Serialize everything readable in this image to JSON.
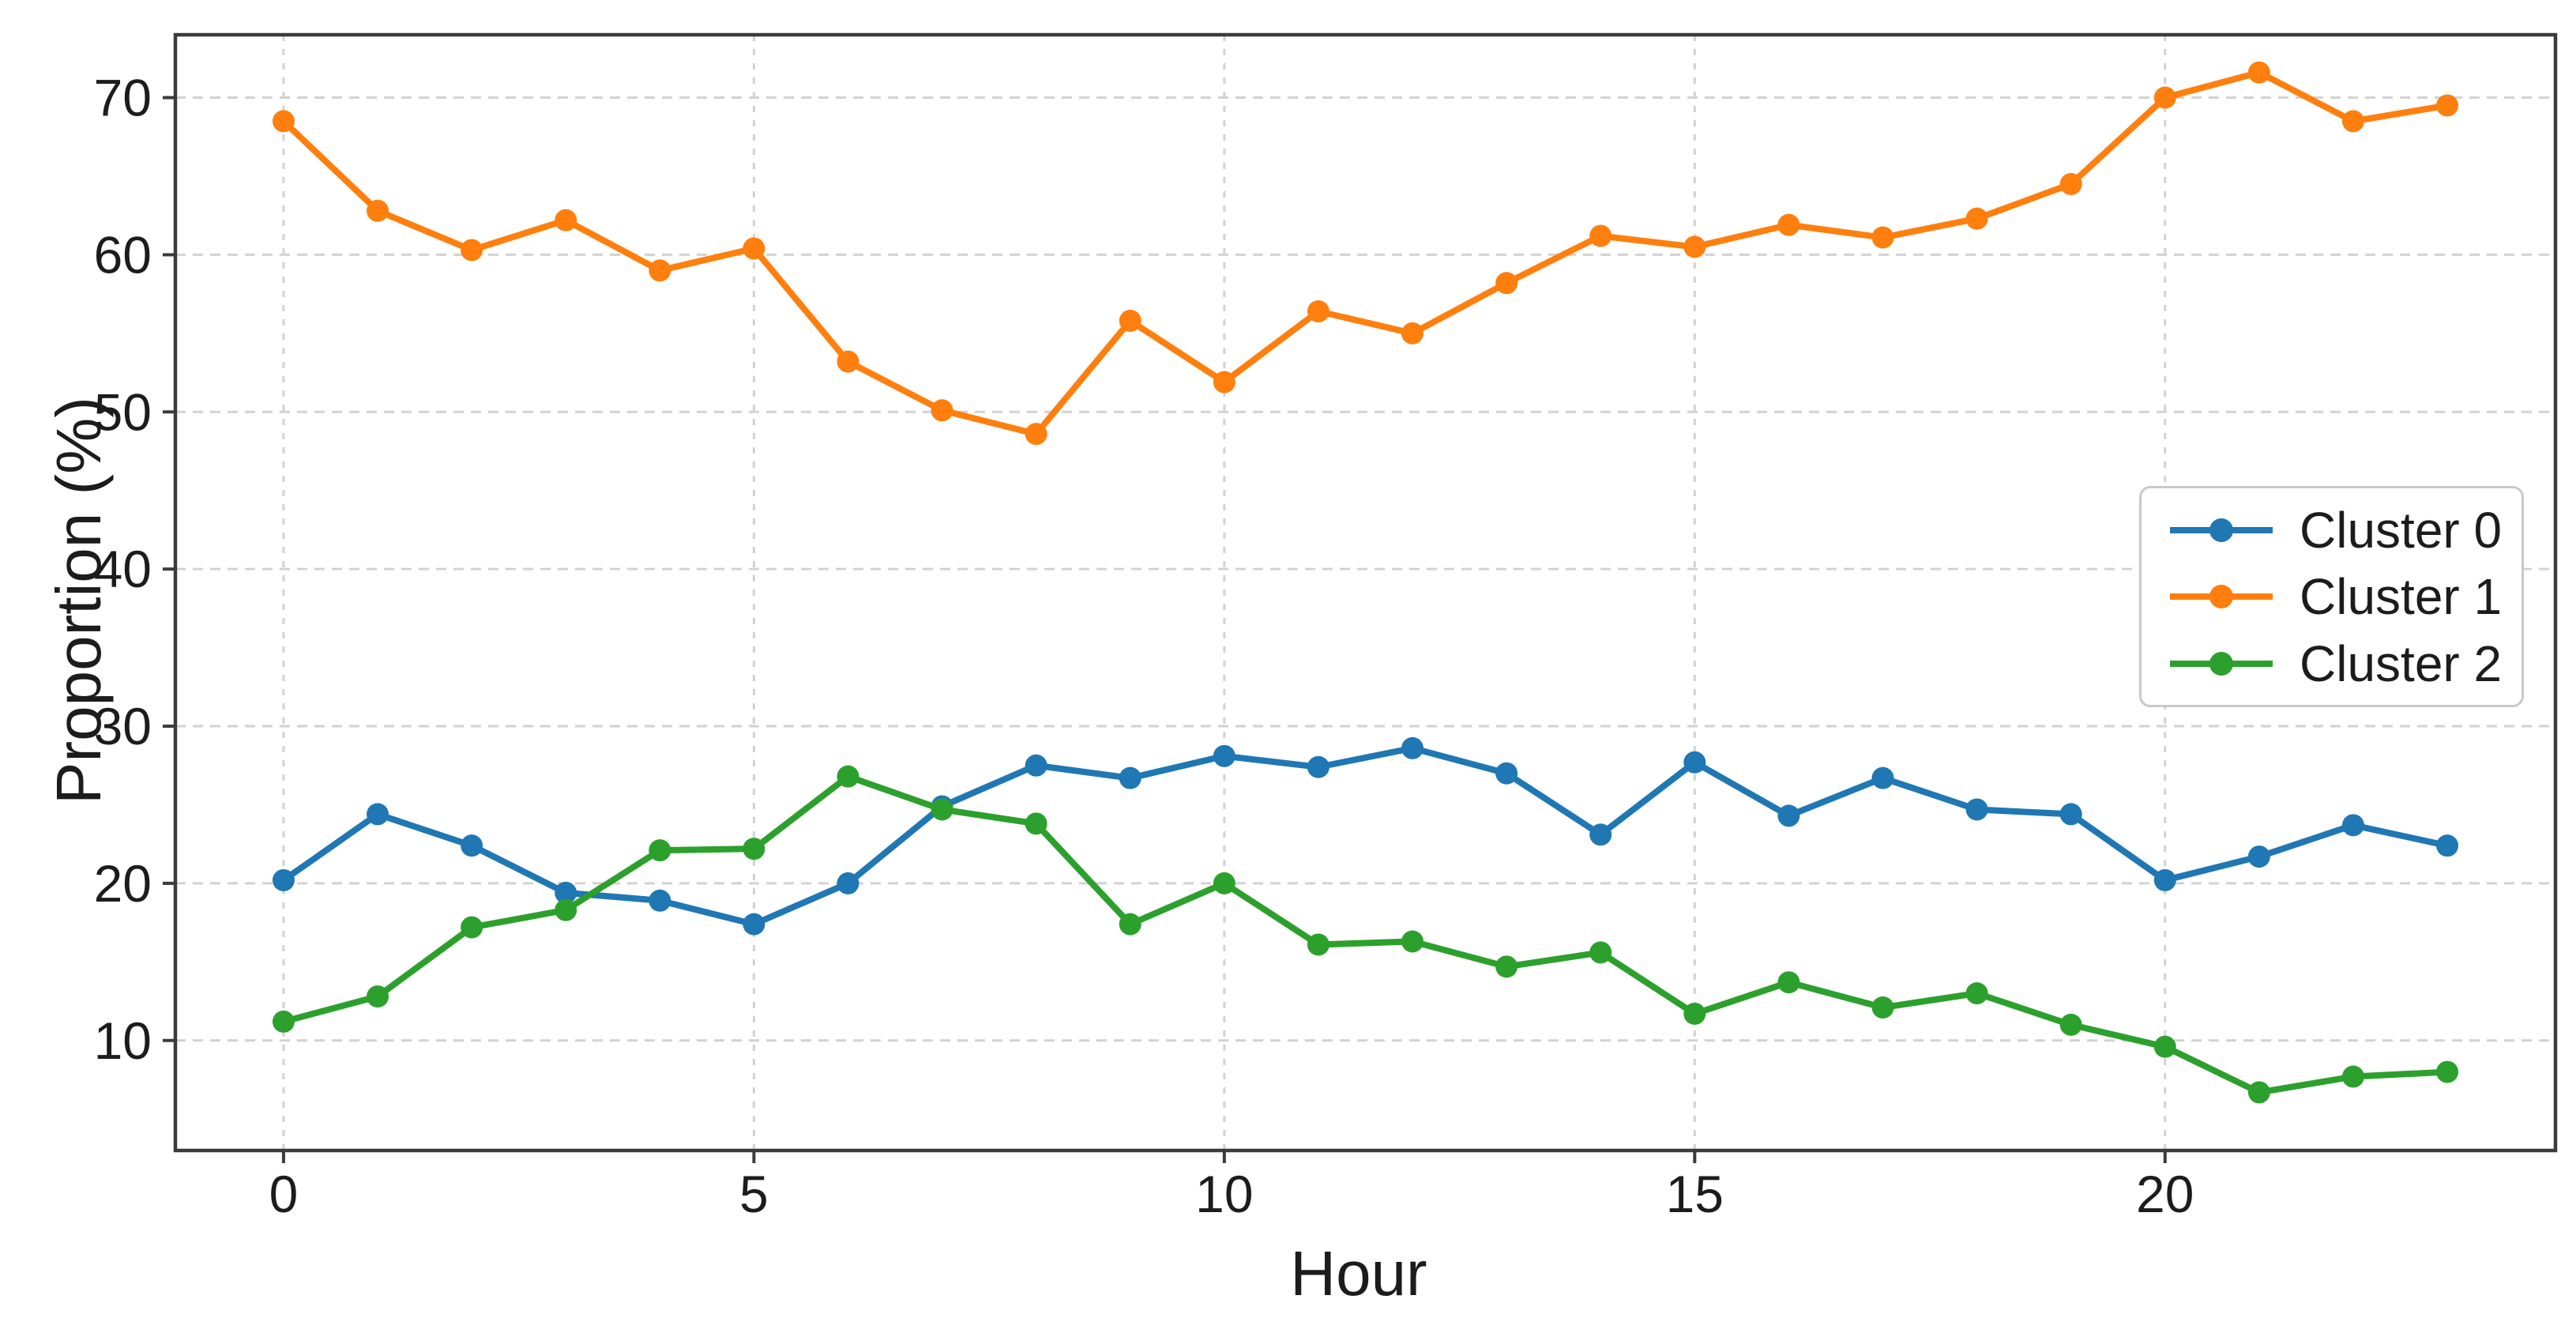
{
  "chart_data": {
    "type": "line",
    "title": "",
    "xlabel": "Hour",
    "ylabel": "Proportion (%)",
    "x": [
      0,
      1,
      2,
      3,
      4,
      5,
      6,
      7,
      8,
      9,
      10,
      11,
      12,
      13,
      14,
      15,
      16,
      17,
      18,
      19,
      20,
      21,
      22,
      23
    ],
    "x_ticks": [
      0,
      5,
      10,
      15,
      20
    ],
    "y_ticks": [
      10,
      20,
      30,
      40,
      50,
      60,
      70
    ],
    "xlim": [
      -1.15,
      24.15
    ],
    "ylim": [
      3,
      74
    ],
    "grid": true,
    "legend_position": "center right",
    "series": [
      {
        "name": "Cluster 0",
        "color": "#1f77b4",
        "values": [
          20.2,
          24.4,
          22.4,
          19.4,
          18.9,
          17.4,
          20.0,
          24.9,
          27.5,
          26.7,
          28.1,
          27.4,
          28.6,
          27.0,
          23.1,
          27.7,
          24.3,
          26.7,
          24.7,
          24.4,
          20.2,
          21.7,
          23.7,
          22.4
        ]
      },
      {
        "name": "Cluster 1",
        "color": "#ff7f0e",
        "values": [
          68.5,
          62.8,
          60.3,
          62.2,
          59.0,
          60.4,
          53.2,
          50.1,
          48.6,
          55.8,
          51.9,
          56.4,
          55.0,
          58.2,
          61.2,
          60.5,
          61.9,
          61.1,
          62.3,
          64.5,
          70.0,
          71.6,
          68.5,
          69.5
        ]
      },
      {
        "name": "Cluster 2",
        "color": "#2ca02c",
        "values": [
          11.2,
          12.8,
          17.2,
          18.3,
          22.1,
          22.2,
          26.8,
          24.7,
          23.8,
          17.4,
          20.0,
          16.1,
          16.3,
          14.7,
          15.6,
          11.7,
          13.7,
          12.1,
          13.0,
          11.0,
          9.6,
          6.7,
          7.7,
          8.0
        ]
      }
    ],
    "style": {
      "grid_color": "#d2d2d2",
      "spine_color": "#3b3b3b",
      "tick_color": "#3b3b3b",
      "text_color": "#1c1c1c",
      "background": "#ffffff"
    }
  }
}
